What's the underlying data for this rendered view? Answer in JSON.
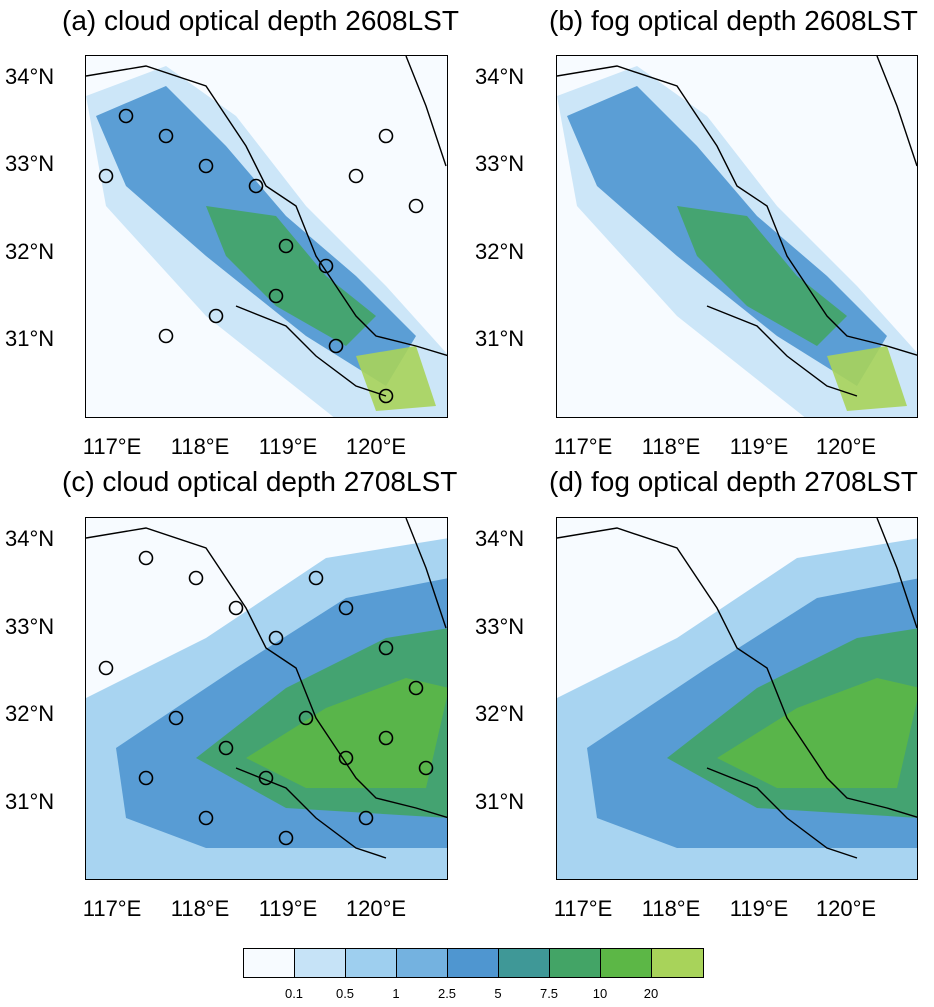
{
  "panels": [
    {
      "id": "a",
      "title": "(a) cloud optical depth 2608LST",
      "has_stations": true,
      "intensity": "low"
    },
    {
      "id": "b",
      "title": "(b) fog optical depth 2608LST",
      "has_stations": false,
      "intensity": "low"
    },
    {
      "id": "c",
      "title": "(c) cloud optical depth 2708LST",
      "has_stations": true,
      "intensity": "high"
    },
    {
      "id": "d",
      "title": "(d) fog optical depth 2708LST",
      "has_stations": false,
      "intensity": "high"
    }
  ],
  "lat_labels": [
    "34°N",
    "33°N",
    "32°N",
    "31°N"
  ],
  "lon_labels": [
    "117°E",
    "118°E",
    "119°E",
    "120°E"
  ],
  "colorbar": {
    "levels": [
      "0.1",
      "0.5",
      "1",
      "2.5",
      "5",
      "7.5",
      "10",
      "20"
    ],
    "colors": [
      "#f7fbff",
      "#c6e3f7",
      "#9ecfef",
      "#74b2e0",
      "#4f96d0",
      "#3f9897",
      "#43a466",
      "#5cb746",
      "#a8d35a"
    ]
  },
  "boundary_color": "#000000",
  "station_marker": "open-circle"
}
